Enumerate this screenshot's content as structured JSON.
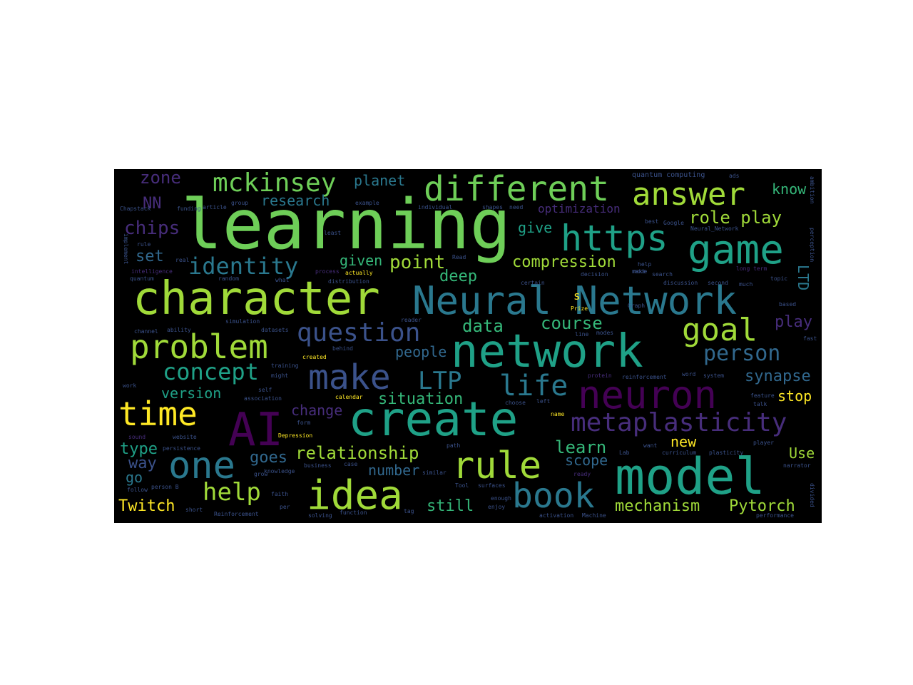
{
  "palette": {
    "background": "#000000",
    "lime": "#a0da39",
    "yellow": "#fde725",
    "green": "#6ece58",
    "teal": "#1fa187",
    "cyan": "#2a788e",
    "blue": "#3b528b",
    "indigo": "#472d7b",
    "purple": "#440154",
    "seagreen": "#35b779",
    "steel": "#31688e"
  },
  "words": [
    {
      "text": "learning"
    },
    {
      "text": "character"
    },
    {
      "text": "network"
    },
    {
      "text": "model"
    },
    {
      "text": "create"
    },
    {
      "text": "Neural Network"
    },
    {
      "text": "neuron"
    },
    {
      "text": "different"
    },
    {
      "text": "game"
    },
    {
      "text": "idea"
    },
    {
      "text": "https"
    },
    {
      "text": "answer"
    },
    {
      "text": "problem"
    },
    {
      "text": "time"
    },
    {
      "text": "AI"
    },
    {
      "text": "one"
    },
    {
      "text": "rule"
    },
    {
      "text": "make"
    },
    {
      "text": "book"
    },
    {
      "text": "goal"
    },
    {
      "text": "metaplasticity"
    },
    {
      "text": "question"
    },
    {
      "text": "life"
    },
    {
      "text": "mckinsey"
    },
    {
      "text": "identity"
    },
    {
      "text": "concept"
    },
    {
      "text": "person"
    },
    {
      "text": "LTP"
    },
    {
      "text": "help"
    },
    {
      "text": "relationship"
    },
    {
      "text": "role play"
    },
    {
      "text": "learn"
    },
    {
      "text": "course"
    },
    {
      "text": "mechanism"
    },
    {
      "text": "Pytorch"
    },
    {
      "text": "Twitch"
    },
    {
      "text": "compression"
    },
    {
      "text": "point"
    },
    {
      "text": "data"
    },
    {
      "text": "synapse"
    },
    {
      "text": "situation"
    },
    {
      "text": "version"
    },
    {
      "text": "people"
    },
    {
      "text": "zone"
    },
    {
      "text": "research"
    },
    {
      "text": "planet"
    },
    {
      "text": "chips"
    },
    {
      "text": "play"
    },
    {
      "text": "know"
    },
    {
      "text": "NN"
    },
    {
      "text": "set"
    },
    {
      "text": "deep"
    },
    {
      "text": "given"
    },
    {
      "text": "give"
    },
    {
      "text": "goes"
    },
    {
      "text": "change"
    },
    {
      "text": "type"
    },
    {
      "text": "way"
    },
    {
      "text": "go"
    },
    {
      "text": "number"
    },
    {
      "text": "scope"
    },
    {
      "text": "new"
    },
    {
      "text": "still"
    },
    {
      "text": "stop"
    },
    {
      "text": "Use"
    },
    {
      "text": "LTD"
    },
    {
      "text": "optimization"
    },
    {
      "text": "s"
    },
    {
      "text": "quantum computing"
    },
    {
      "text": "Chapstack"
    },
    {
      "text": "funding"
    },
    {
      "text": "article"
    },
    {
      "text": "group"
    },
    {
      "text": "example"
    },
    {
      "text": "individual"
    },
    {
      "text": "shapes"
    },
    {
      "text": "need"
    },
    {
      "text": "best"
    },
    {
      "text": "Google"
    },
    {
      "text": "Neural_Network"
    },
    {
      "text": "ads"
    },
    {
      "text": "ambition"
    },
    {
      "text": "perception"
    },
    {
      "text": "implement"
    },
    {
      "text": "rule"
    },
    {
      "text": "intelligence"
    },
    {
      "text": "quantum"
    },
    {
      "text": "random"
    },
    {
      "text": "process"
    },
    {
      "text": "actually"
    },
    {
      "text": "distribution"
    },
    {
      "text": "simulation"
    },
    {
      "text": "certain"
    },
    {
      "text": "decision"
    },
    {
      "text": "search"
    },
    {
      "text": "discussion"
    },
    {
      "text": "second"
    },
    {
      "text": "much"
    },
    {
      "text": "long term"
    },
    {
      "text": "topic"
    },
    {
      "text": "based"
    },
    {
      "text": "Prize"
    },
    {
      "text": "line"
    },
    {
      "text": "modes"
    },
    {
      "text": "channel"
    },
    {
      "text": "ability"
    },
    {
      "text": "datasets"
    },
    {
      "text": "training"
    },
    {
      "text": "created"
    },
    {
      "text": "behind"
    },
    {
      "text": "protein"
    },
    {
      "text": "reinforcement"
    },
    {
      "text": "word"
    },
    {
      "text": "system"
    },
    {
      "text": "feature"
    },
    {
      "text": "talk"
    },
    {
      "text": "self"
    },
    {
      "text": "association"
    },
    {
      "text": "calendar"
    },
    {
      "text": "choose"
    },
    {
      "text": "left"
    },
    {
      "text": "name"
    },
    {
      "text": "form"
    },
    {
      "text": "Depression"
    },
    {
      "text": "website"
    },
    {
      "text": "persistence"
    },
    {
      "text": "sound"
    },
    {
      "text": "want"
    },
    {
      "text": "curriculum"
    },
    {
      "text": "plasticity"
    },
    {
      "text": "player"
    },
    {
      "text": "grow"
    },
    {
      "text": "knowledge"
    },
    {
      "text": "business"
    },
    {
      "text": "case"
    },
    {
      "text": "similar"
    },
    {
      "text": "ready"
    },
    {
      "text": "narrator"
    },
    {
      "text": "Lab"
    },
    {
      "text": "follow"
    },
    {
      "text": "person B"
    },
    {
      "text": "faith"
    },
    {
      "text": "Tool"
    },
    {
      "text": "surfaces"
    },
    {
      "text": "enough"
    },
    {
      "text": "enjoy"
    },
    {
      "text": "short"
    },
    {
      "text": "Reinforcement"
    },
    {
      "text": "per"
    },
    {
      "text": "solving"
    },
    {
      "text": "function"
    },
    {
      "text": "tag"
    },
    {
      "text": "activation"
    },
    {
      "text": "Machine"
    },
    {
      "text": "performance"
    },
    {
      "text": "divided"
    },
    {
      "text": "work"
    },
    {
      "text": "might"
    },
    {
      "text": "Read"
    },
    {
      "text": "what"
    },
    {
      "text": "make"
    },
    {
      "text": "least"
    },
    {
      "text": "real"
    },
    {
      "text": "Graph"
    },
    {
      "text": "path"
    },
    {
      "text": "mode"
    },
    {
      "text": "fast"
    },
    {
      "text": "help"
    },
    {
      "text": "reader"
    }
  ]
}
